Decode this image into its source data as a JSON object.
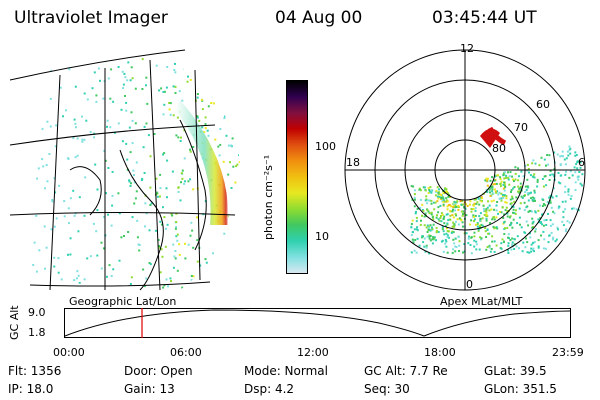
{
  "header": {
    "instrument": "Ultraviolet Imager",
    "date": "04 Aug 00",
    "time": "03:45:44 UT"
  },
  "left_panel": {
    "label": "Geographic Lat/Lon"
  },
  "colorbar": {
    "unit_label": "photon cm⁻²s⁻¹",
    "ticks": [
      "100",
      "10"
    ],
    "colors": [
      "#d8e8f0",
      "#7fe0e0",
      "#30d0b0",
      "#40c860",
      "#90dc30",
      "#e8e820",
      "#f0c010",
      "#f09010",
      "#e05010",
      "#c00000",
      "#801040",
      "#300050",
      "#000000"
    ]
  },
  "polar_panel": {
    "label": "Apex MLat/MLT",
    "mlt_labels": [
      "12",
      "18",
      "6",
      "0"
    ],
    "lat_labels": [
      "60",
      "70",
      "80"
    ]
  },
  "timeline": {
    "axis_label": "GC Alt",
    "y_ticks": [
      "9.0",
      "1.8"
    ],
    "x_ticks": [
      "00:00",
      "06:00",
      "12:00",
      "18:00",
      "23:59"
    ],
    "marker_time": "03:45"
  },
  "footer": {
    "flt": "Flt:  1356",
    "ip": "IP:  18.0",
    "door": "Door:  Open",
    "gain": "Gain:  13",
    "mode": "Mode:  Normal",
    "dsp": "Dsp:       4.2",
    "gcalt": "GC Alt:  7.7 Re",
    "seq": "Seq:  30",
    "glat": "GLat:    39.5",
    "glon": "GLon:  351.5"
  }
}
